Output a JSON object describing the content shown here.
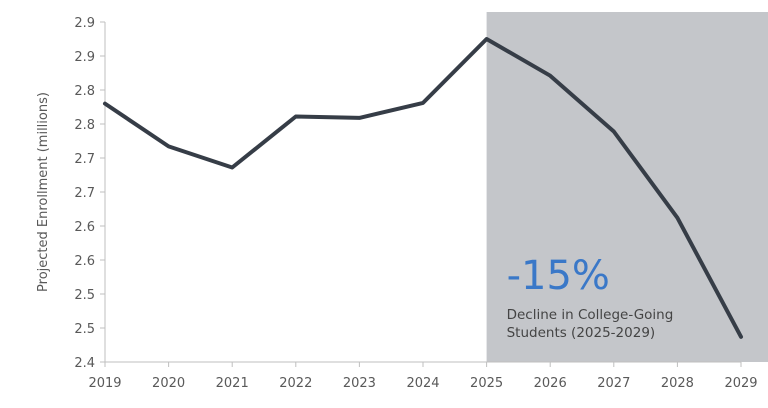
{
  "chart_data": {
    "type": "line",
    "title": "",
    "xlabel": "",
    "ylabel": "Projected Enrollment (millions)",
    "x": [
      2019,
      2020,
      2021,
      2022,
      2023,
      2024,
      2025,
      2026,
      2027,
      2028,
      2029
    ],
    "x_tick_labels": [
      "2019",
      "2020",
      "2021",
      "2022",
      "2023",
      "2024",
      "2025",
      "2026",
      "2027",
      "2028",
      "2029"
    ],
    "series": [
      {
        "values": [
          2.78,
          2.717,
          2.686,
          2.761,
          2.759,
          2.781,
          2.875,
          2.821,
          2.739,
          2.612,
          2.437
        ]
      }
    ],
    "ylim": [
      2.4,
      2.9
    ],
    "y_ticks": [
      2.4,
      2.45,
      2.5,
      2.55,
      2.6,
      2.65,
      2.7,
      2.75,
      2.8,
      2.85,
      2.9
    ],
    "y_tick_labels": [
      "2.4",
      "2.5",
      "2.5",
      "2.6",
      "2.6",
      "2.7",
      "2.7",
      "2.8",
      "2.8",
      "2.9",
      "2.9"
    ],
    "grid": false,
    "shaded_region": {
      "x_start": 2025,
      "x_end": 2029,
      "color": "#c4c6ca"
    },
    "line_color": "#363d47",
    "annotation": {
      "stat": "-15%",
      "text_line1": "Decline in College-Going",
      "text_line2": "Students (2025-2029)",
      "stat_color": "#3a78c8"
    }
  }
}
